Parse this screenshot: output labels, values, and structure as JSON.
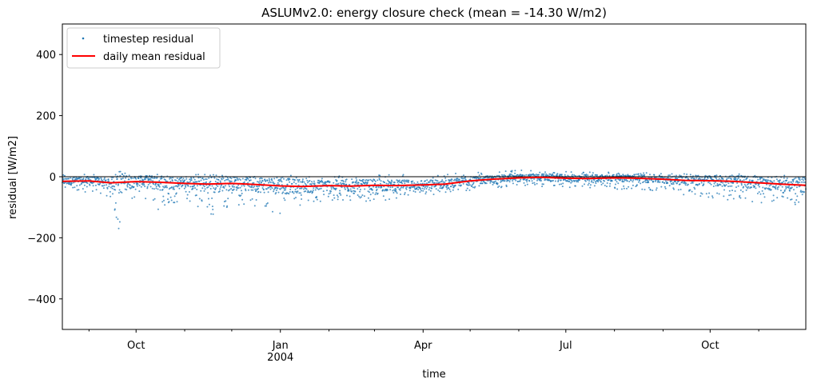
{
  "chart_data": {
    "type": "scatter",
    "title": "ASLUMv2.0: energy closure check (mean = -14.30 W/m2)",
    "xlabel": "time",
    "ylabel": "residual [W/m2]",
    "xlim": [
      "2003-08-15",
      "2004-12-01"
    ],
    "ylim": [
      -500,
      500
    ],
    "yticks": [
      400,
      200,
      0,
      -200,
      -400
    ],
    "ytick_labels": [
      "400",
      "200",
      "0",
      "−200",
      "−400"
    ],
    "xticks": [
      {
        "date": "2003-10-01",
        "label": "Oct",
        "sublabel": ""
      },
      {
        "date": "2004-01-01",
        "label": "Jan",
        "sublabel": "2004"
      },
      {
        "date": "2004-04-01",
        "label": "Apr",
        "sublabel": ""
      },
      {
        "date": "2004-07-01",
        "label": "Jul",
        "sublabel": ""
      },
      {
        "date": "2004-10-01",
        "label": "Oct",
        "sublabel": ""
      }
    ],
    "minor_xticks": [
      "2003-09-01",
      "2003-11-01",
      "2003-12-01",
      "2004-02-01",
      "2004-03-01",
      "2004-05-01",
      "2004-06-01",
      "2004-08-01",
      "2004-09-01",
      "2004-11-01"
    ],
    "zero_line": 0,
    "legend": {
      "location": "upper left"
    },
    "series": [
      {
        "name": "timestep residual",
        "kind": "points",
        "color": "#1f77b4",
        "envelope": [
          {
            "date": "2003-08-15",
            "low": -40,
            "high": 8
          },
          {
            "date": "2003-09-01",
            "low": -55,
            "high": 10
          },
          {
            "date": "2003-09-15",
            "low": -70,
            "high": 6
          },
          {
            "date": "2003-09-20",
            "low": -175,
            "high": 6
          },
          {
            "date": "2003-10-01",
            "low": -60,
            "high": 5
          },
          {
            "date": "2003-10-15",
            "low": -115,
            "high": 6
          },
          {
            "date": "2003-11-01",
            "low": -70,
            "high": 6
          },
          {
            "date": "2003-11-20",
            "low": -135,
            "high": 10
          },
          {
            "date": "2003-12-01",
            "low": -90,
            "high": 6
          },
          {
            "date": "2004-01-01",
            "low": -120,
            "high": 4
          },
          {
            "date": "2004-01-15",
            "low": -90,
            "high": 4
          },
          {
            "date": "2004-02-01",
            "low": -80,
            "high": 6
          },
          {
            "date": "2004-03-01",
            "low": -80,
            "high": 6
          },
          {
            "date": "2004-04-01",
            "low": -65,
            "high": 8
          },
          {
            "date": "2004-05-01",
            "low": -45,
            "high": 12
          },
          {
            "date": "2004-06-01",
            "low": -30,
            "high": 22
          },
          {
            "date": "2004-07-01",
            "low": -35,
            "high": 18
          },
          {
            "date": "2004-08-01",
            "low": -40,
            "high": 15
          },
          {
            "date": "2004-09-01",
            "low": -50,
            "high": 12
          },
          {
            "date": "2004-10-01",
            "low": -70,
            "high": 10
          },
          {
            "date": "2004-11-01",
            "low": -85,
            "high": 8
          },
          {
            "date": "2004-12-01",
            "low": -100,
            "high": 10
          }
        ]
      },
      {
        "name": "daily mean residual",
        "kind": "line",
        "color": "#ff0000",
        "points": [
          {
            "date": "2003-08-15",
            "value": -15
          },
          {
            "date": "2003-09-01",
            "value": -14
          },
          {
            "date": "2003-09-15",
            "value": -20
          },
          {
            "date": "2003-10-01",
            "value": -16
          },
          {
            "date": "2003-10-15",
            "value": -18
          },
          {
            "date": "2003-11-01",
            "value": -22
          },
          {
            "date": "2003-11-15",
            "value": -24
          },
          {
            "date": "2003-12-01",
            "value": -22
          },
          {
            "date": "2003-12-15",
            "value": -25
          },
          {
            "date": "2004-01-01",
            "value": -30
          },
          {
            "date": "2004-01-15",
            "value": -32
          },
          {
            "date": "2004-02-01",
            "value": -29
          },
          {
            "date": "2004-02-15",
            "value": -31
          },
          {
            "date": "2004-03-01",
            "value": -28
          },
          {
            "date": "2004-03-15",
            "value": -29
          },
          {
            "date": "2004-04-01",
            "value": -27
          },
          {
            "date": "2004-04-15",
            "value": -24
          },
          {
            "date": "2004-05-01",
            "value": -14
          },
          {
            "date": "2004-05-15",
            "value": -8
          },
          {
            "date": "2004-06-01",
            "value": -4
          },
          {
            "date": "2004-06-15",
            "value": -2
          },
          {
            "date": "2004-07-01",
            "value": -5
          },
          {
            "date": "2004-07-15",
            "value": -6
          },
          {
            "date": "2004-08-01",
            "value": -4
          },
          {
            "date": "2004-08-15",
            "value": -5
          },
          {
            "date": "2004-09-01",
            "value": -8
          },
          {
            "date": "2004-09-15",
            "value": -12
          },
          {
            "date": "2004-10-01",
            "value": -13
          },
          {
            "date": "2004-10-15",
            "value": -15
          },
          {
            "date": "2004-11-01",
            "value": -20
          },
          {
            "date": "2004-11-15",
            "value": -24
          },
          {
            "date": "2004-12-01",
            "value": -28
          }
        ]
      }
    ]
  }
}
